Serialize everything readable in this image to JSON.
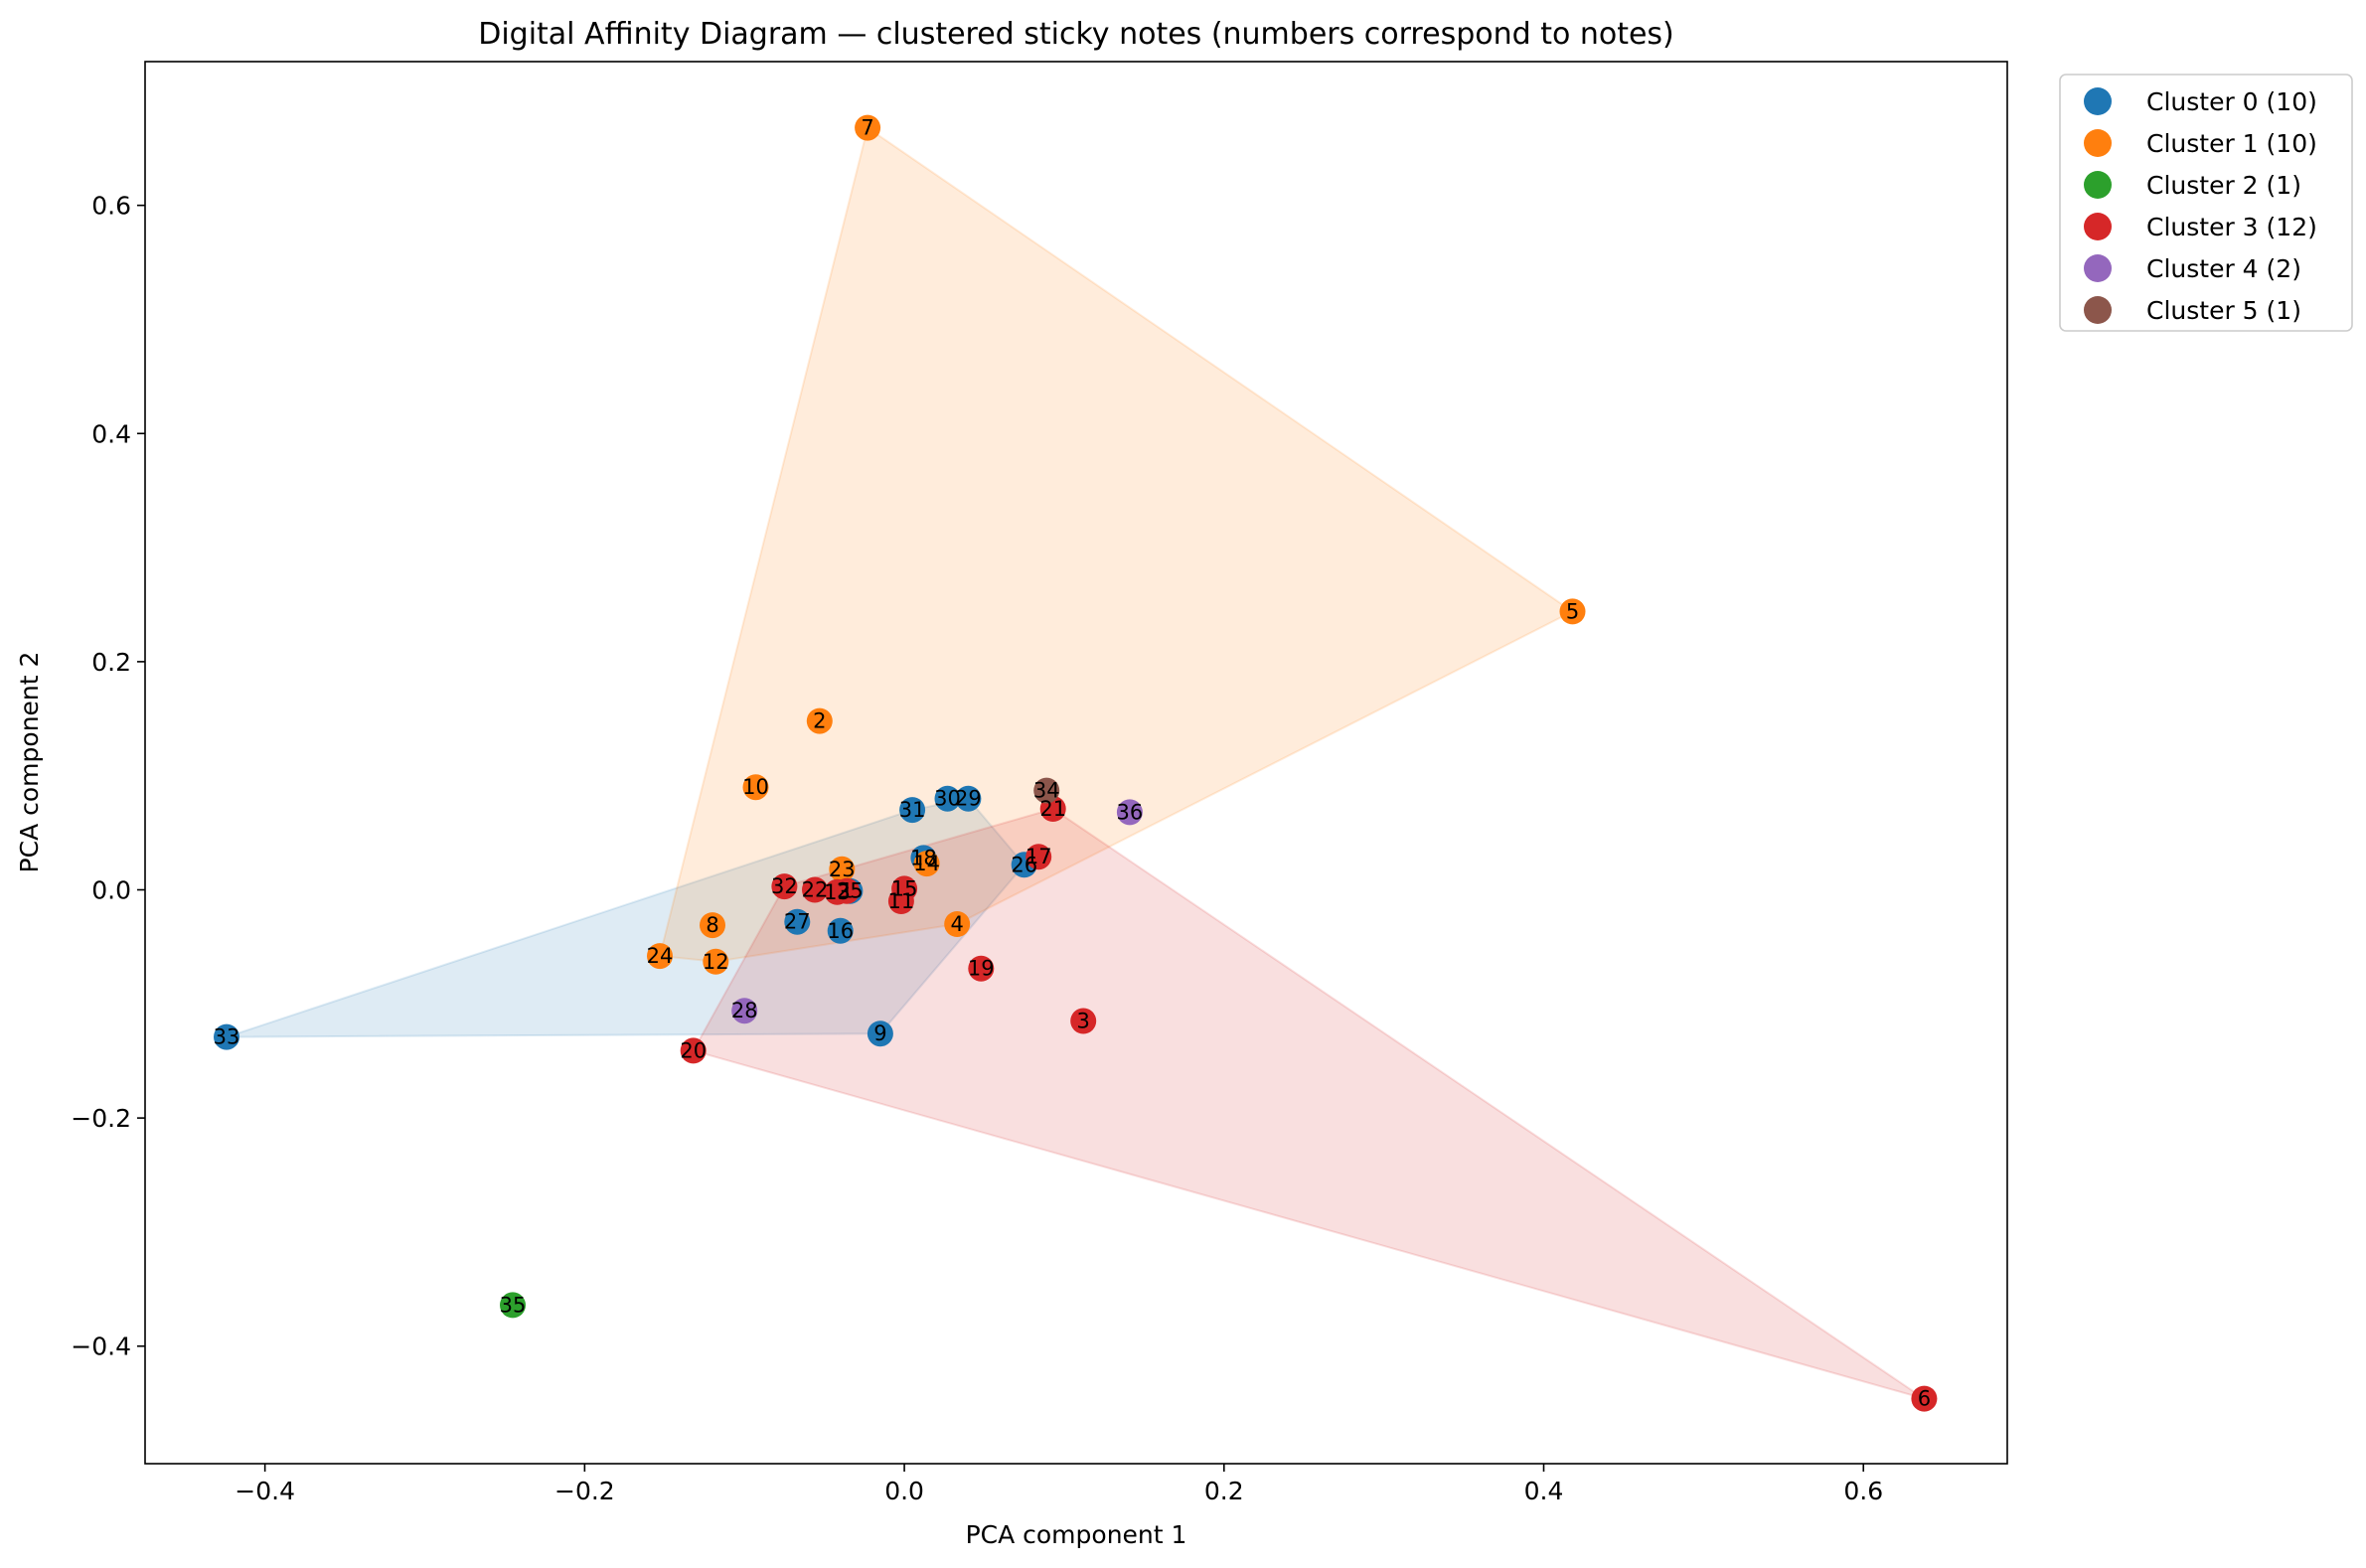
{
  "chart_data": {
    "type": "scatter",
    "title": "Digital Affinity Diagram — clustered sticky notes (numbers correspond to notes)",
    "xlabel": "PCA component 1",
    "ylabel": "PCA component 2",
    "xlim": [
      -0.475,
      0.69
    ],
    "ylim": [
      -0.503,
      0.726
    ],
    "xticks": [
      -0.4,
      -0.2,
      0.0,
      0.2,
      0.4,
      0.6
    ],
    "xtick_labels": [
      "−0.4",
      "−0.2",
      "0.0",
      "0.2",
      "0.4",
      "0.6"
    ],
    "yticks": [
      -0.4,
      -0.2,
      0.0,
      0.2,
      0.4,
      0.6
    ],
    "ytick_labels": [
      "−0.4",
      "−0.2",
      "0.0",
      "0.2",
      "0.4",
      "0.6"
    ],
    "grid": false,
    "legend_position": "outside-top-right",
    "clusters": [
      {
        "name": "Cluster 0 (10)",
        "color": "#1f77b4",
        "points": [
          {
            "id": "33",
            "x": -0.424,
            "y": -0.129
          },
          {
            "id": "31",
            "x": 0.005,
            "y": 0.07
          },
          {
            "id": "30",
            "x": 0.027,
            "y": 0.08
          },
          {
            "id": "29",
            "x": 0.04,
            "y": 0.08
          },
          {
            "id": "18",
            "x": 0.012,
            "y": 0.028
          },
          {
            "id": "26",
            "x": 0.075,
            "y": 0.022
          },
          {
            "id": "25",
            "x": -0.034,
            "y": -0.001
          },
          {
            "id": "27",
            "x": -0.067,
            "y": -0.028
          },
          {
            "id": "16",
            "x": -0.04,
            "y": -0.036
          },
          {
            "id": "9",
            "x": -0.015,
            "y": -0.126
          }
        ],
        "hull": [
          {
            "x": -0.424,
            "y": -0.129
          },
          {
            "x": 0.005,
            "y": 0.07
          },
          {
            "x": 0.04,
            "y": 0.08
          },
          {
            "x": 0.075,
            "y": 0.022
          },
          {
            "x": -0.015,
            "y": -0.126
          }
        ]
      },
      {
        "name": "Cluster 1 (10)",
        "color": "#ff7f0e",
        "points": [
          {
            "id": "7",
            "x": -0.023,
            "y": 0.668
          },
          {
            "id": "5",
            "x": 0.418,
            "y": 0.244
          },
          {
            "id": "2",
            "x": -0.053,
            "y": 0.148
          },
          {
            "id": "10",
            "x": -0.093,
            "y": 0.09
          },
          {
            "id": "23",
            "x": -0.039,
            "y": 0.018
          },
          {
            "id": "14",
            "x": 0.014,
            "y": 0.023
          },
          {
            "id": "4",
            "x": 0.033,
            "y": -0.03
          },
          {
            "id": "8",
            "x": -0.12,
            "y": -0.031
          },
          {
            "id": "24",
            "x": -0.153,
            "y": -0.058
          },
          {
            "id": "12",
            "x": -0.118,
            "y": -0.063
          }
        ],
        "hull": [
          {
            "x": -0.023,
            "y": 0.668
          },
          {
            "x": 0.418,
            "y": 0.244
          },
          {
            "x": 0.033,
            "y": -0.03
          },
          {
            "x": -0.118,
            "y": -0.063
          },
          {
            "x": -0.153,
            "y": -0.058
          }
        ]
      },
      {
        "name": "Cluster 2 (1)",
        "color": "#2ca02c",
        "points": [
          {
            "id": "35",
            "x": -0.245,
            "y": -0.364
          }
        ],
        "hull": []
      },
      {
        "name": "Cluster 3 (12)",
        "color": "#d62728",
        "points": [
          {
            "id": "21",
            "x": 0.093,
            "y": 0.071
          },
          {
            "id": "17",
            "x": 0.084,
            "y": 0.029
          },
          {
            "id": "32",
            "x": -0.075,
            "y": 0.003
          },
          {
            "id": "22",
            "x": -0.056,
            "y": 0.0
          },
          {
            "id": "13",
            "x": -0.042,
            "y": -0.002
          },
          {
            "id": "15",
            "x": 0.0,
            "y": 0.001
          },
          {
            "id": "11",
            "x": -0.002,
            "y": -0.01
          },
          {
            "id": "19",
            "x": 0.048,
            "y": -0.069
          },
          {
            "id": "3",
            "x": 0.112,
            "y": -0.115
          },
          {
            "id": "20",
            "x": -0.132,
            "y": -0.141
          },
          {
            "id": "6",
            "x": 0.638,
            "y": -0.446
          },
          {
            "id": "1",
            "x": -0.036,
            "y": -0.001
          }
        ],
        "hull": [
          {
            "x": -0.075,
            "y": 0.003
          },
          {
            "x": 0.093,
            "y": 0.071
          },
          {
            "x": 0.638,
            "y": -0.446
          },
          {
            "x": -0.132,
            "y": -0.141
          }
        ]
      },
      {
        "name": "Cluster 4 (2)",
        "color": "#9467bd",
        "points": [
          {
            "id": "36",
            "x": 0.141,
            "y": 0.068
          },
          {
            "id": "28",
            "x": -0.1,
            "y": -0.106
          }
        ],
        "hull": []
      },
      {
        "name": "Cluster 5 (1)",
        "color": "#8c564b",
        "points": [
          {
            "id": "34",
            "x": 0.089,
            "y": 0.087
          }
        ],
        "hull": []
      }
    ]
  }
}
